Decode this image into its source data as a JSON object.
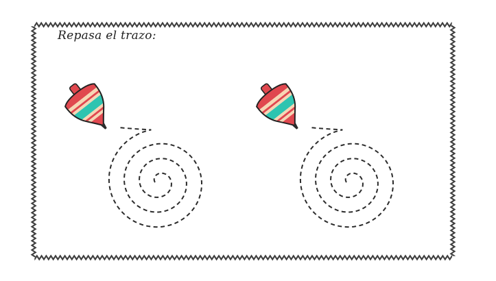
{
  "worksheet": {
    "instruction": "Repasa el trazo:"
  },
  "colors": {
    "border": "#3a3a3a",
    "trace_line": "#2b2b2b",
    "top_red": "#e0484f",
    "top_teal": "#2ec4b0",
    "top_cream": "#f6d6b4",
    "top_outline": "#222222",
    "tip": "#2b2b2b",
    "background": "#ffffff"
  },
  "exercises": [
    {
      "icon": "spinning-top-icon",
      "trace": "spiral"
    },
    {
      "icon": "spinning-top-icon",
      "trace": "spiral"
    }
  ]
}
